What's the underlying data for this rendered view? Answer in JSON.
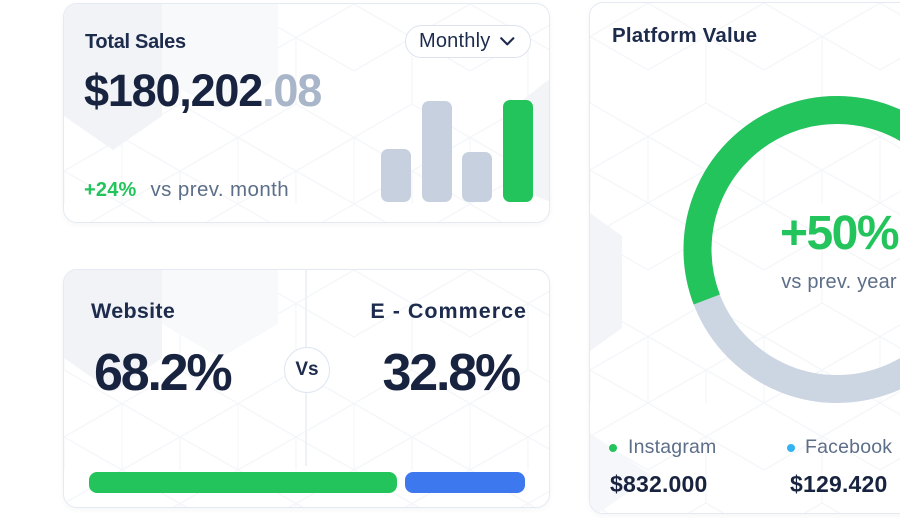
{
  "colors": {
    "green": "#23c45c",
    "blue": "#3e78ee",
    "sky_blue": "#33b4f2",
    "bar_gray": "#c7d0de",
    "donut_track": "#ccd5e2",
    "navy": "#1d2b4d",
    "amount_navy": "#18233f",
    "muted_text": "#5d6e88",
    "fraction_gray": "#a9b5c8"
  },
  "cards": {
    "total_sales": {
      "title": "Total Sales",
      "period_selector": {
        "value": "Monthly"
      },
      "amount_main": "$180,202",
      "amount_fraction": ".08",
      "delta": "+24%",
      "delta_caption": "vs prev. month"
    },
    "comparison": {
      "left": {
        "label": "Website",
        "value": "68.2%"
      },
      "vs_label": "Vs",
      "right": {
        "label": "E - Commerce",
        "value": "32.8%"
      }
    },
    "platform_value": {
      "title": "Platform Value",
      "delta": "+50%",
      "delta_caption": "vs prev. year",
      "legend": [
        {
          "name": "Instagram",
          "value": "$832.000"
        },
        {
          "name": "Facebook",
          "value": "$129.420"
        }
      ]
    }
  },
  "chart_data": [
    {
      "id": "sales-mini-bars",
      "type": "bar",
      "title": "Total Sales mini bar chart",
      "categories": [
        "bar1",
        "bar2",
        "bar3",
        "bar4"
      ],
      "values_relative_pct": [
        52,
        99,
        49,
        100
      ],
      "bar_colors": [
        "#c7d0de",
        "#c7d0de",
        "#c7d0de",
        "#23c45c"
      ],
      "axes": "none shown"
    },
    {
      "id": "website-vs-ecommerce-split",
      "type": "bar",
      "title": "Website vs E - Commerce share",
      "categories": [
        "Website",
        "E - Commerce"
      ],
      "values": [
        68.2,
        32.8
      ],
      "unit": "%",
      "bar_colors": [
        "#23c45c",
        "#3e78ee"
      ],
      "bar_fractions": [
        0.72,
        0.28
      ]
    },
    {
      "id": "platform-value-donut",
      "type": "pie",
      "title": "Platform Value",
      "series": [
        {
          "name": "Instagram",
          "display_value": "$832.000",
          "color": "#23c45c"
        },
        {
          "name": "Facebook",
          "display_value": "$129.420",
          "color": "#33b4f2"
        }
      ],
      "donut_percent_green": 65,
      "donut_start_angle_deg": 159,
      "center_label": "+50%",
      "center_sublabel": "vs prev. year",
      "legend_position": "bottom"
    }
  ]
}
